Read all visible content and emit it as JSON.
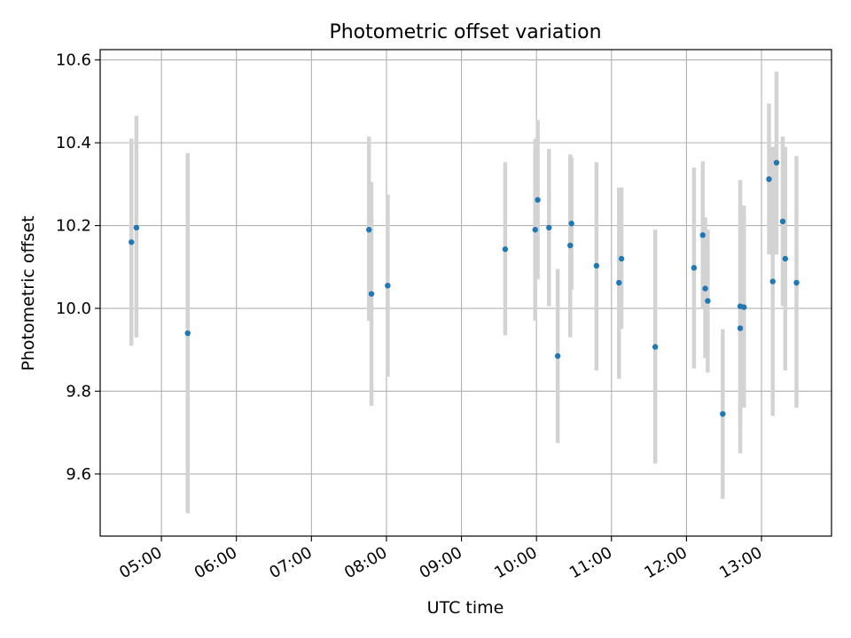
{
  "chart_data": {
    "type": "scatter",
    "title": "Photometric offset variation",
    "xlabel": "UTC time",
    "ylabel": "Photometric offset",
    "x_unit": "HH:MM (UTC)",
    "xlim": [
      "04:11",
      "13:56"
    ],
    "ylim": [
      9.45,
      10.625
    ],
    "xticks": [
      "05:00",
      "06:00",
      "07:00",
      "08:00",
      "09:00",
      "10:00",
      "11:00",
      "12:00",
      "13:00"
    ],
    "yticks": [
      9.6,
      9.8,
      10.0,
      10.2,
      10.4,
      10.6
    ],
    "grid": true,
    "colors": {
      "point": "#1f77b4",
      "errorbar": "#d3d3d3",
      "grid": "#b0b0b0"
    },
    "points": [
      {
        "x": "04:36",
        "y": 10.16,
        "yerr": [
          9.91,
          10.41
        ]
      },
      {
        "x": "04:40",
        "y": 10.195,
        "yerr": [
          9.93,
          10.465
        ]
      },
      {
        "x": "05:21",
        "y": 9.94,
        "yerr": [
          9.505,
          10.375
        ]
      },
      {
        "x": "07:46",
        "y": 10.19,
        "yerr": [
          9.97,
          10.415
        ]
      },
      {
        "x": "07:48",
        "y": 10.035,
        "yerr": [
          9.765,
          10.305
        ]
      },
      {
        "x": "08:01",
        "y": 10.055,
        "yerr": [
          9.835,
          10.275
        ]
      },
      {
        "x": "09:35",
        "y": 10.143,
        "yerr": [
          9.935,
          10.353
        ]
      },
      {
        "x": "09:59",
        "y": 10.19,
        "yerr": [
          9.97,
          10.41
        ]
      },
      {
        "x": "10:01",
        "y": 10.262,
        "yerr": [
          10.07,
          10.455
        ]
      },
      {
        "x": "10:10",
        "y": 10.195,
        "yerr": [
          10.005,
          10.385
        ]
      },
      {
        "x": "10:17",
        "y": 9.885,
        "yerr": [
          9.675,
          10.095
        ]
      },
      {
        "x": "10:27",
        "y": 10.152,
        "yerr": [
          9.93,
          10.372
        ]
      },
      {
        "x": "10:28",
        "y": 10.205,
        "yerr": [
          10.045,
          10.365
        ]
      },
      {
        "x": "10:48",
        "y": 10.103,
        "yerr": [
          9.85,
          10.353
        ]
      },
      {
        "x": "11:06",
        "y": 10.062,
        "yerr": [
          9.83,
          10.292
        ]
      },
      {
        "x": "11:08",
        "y": 10.12,
        "yerr": [
          9.95,
          10.292
        ]
      },
      {
        "x": "11:35",
        "y": 9.907,
        "yerr": [
          9.625,
          10.19
        ]
      },
      {
        "x": "12:06",
        "y": 10.098,
        "yerr": [
          9.855,
          10.34
        ]
      },
      {
        "x": "12:13",
        "y": 10.177,
        "yerr": [
          10.0,
          10.355
        ]
      },
      {
        "x": "12:15",
        "y": 10.048,
        "yerr": [
          9.88,
          10.22
        ]
      },
      {
        "x": "12:17",
        "y": 10.018,
        "yerr": [
          9.845,
          10.19
        ]
      },
      {
        "x": "12:29",
        "y": 9.745,
        "yerr": [
          9.54,
          9.95
        ]
      },
      {
        "x": "12:43",
        "y": 9.952,
        "yerr": [
          9.65,
          10.255
        ]
      },
      {
        "x": "12:43",
        "y": 10.005,
        "yerr": [
          9.71,
          10.31
        ]
      },
      {
        "x": "12:46",
        "y": 10.003,
        "yerr": [
          9.76,
          10.248
        ]
      },
      {
        "x": "13:06",
        "y": 10.312,
        "yerr": [
          10.13,
          10.495
        ]
      },
      {
        "x": "13:09",
        "y": 10.065,
        "yerr": [
          9.74,
          10.39
        ]
      },
      {
        "x": "13:12",
        "y": 10.352,
        "yerr": [
          10.13,
          10.572
        ]
      },
      {
        "x": "13:17",
        "y": 10.21,
        "yerr": [
          10.005,
          10.415
        ]
      },
      {
        "x": "13:19",
        "y": 10.12,
        "yerr": [
          9.85,
          10.39
        ]
      },
      {
        "x": "13:28",
        "y": 10.062,
        "yerr": [
          9.76,
          10.368
        ]
      }
    ]
  }
}
